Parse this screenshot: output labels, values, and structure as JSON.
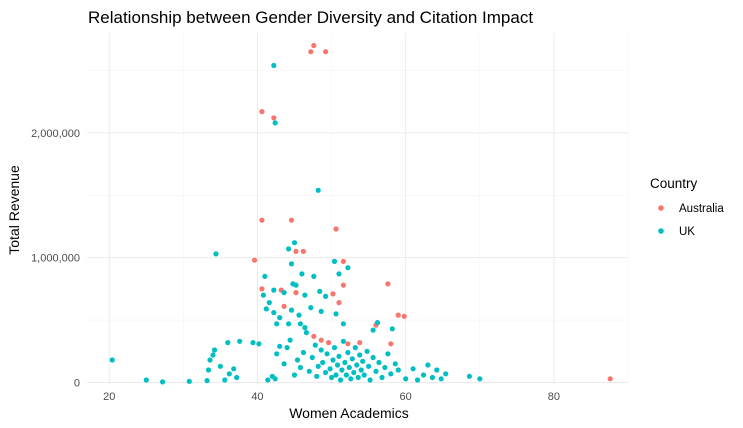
{
  "chart_data": {
    "type": "scatter",
    "title": "Relationship between Gender Diversity and Citation Impact",
    "xlabel": "Women Academics",
    "ylabel": "Total Revenue",
    "xlim": [
      17,
      90
    ],
    "ylim": [
      -20000,
      2800000
    ],
    "x_ticks": [
      20,
      40,
      60,
      80
    ],
    "x_tick_labels": [
      "20",
      "40",
      "60",
      "80"
    ],
    "y_ticks": [
      0,
      1000000,
      2000000
    ],
    "y_tick_labels": [
      "0",
      "1,000,000",
      "2,000,000"
    ],
    "grid": true,
    "legend": {
      "title": "Country",
      "placement": "right",
      "entries": [
        {
          "label": "Australia",
          "color": "#F8766D"
        },
        {
          "label": "UK",
          "color": "#00BFC4"
        }
      ]
    },
    "series": [
      {
        "name": "Australia",
        "color": "#F8766D",
        "points": [
          [
            47.6,
            2700000
          ],
          [
            47.2,
            2650000
          ],
          [
            49.2,
            2650000
          ],
          [
            40.6,
            2170000
          ],
          [
            42.2,
            2120000
          ],
          [
            40.6,
            1300000
          ],
          [
            44.6,
            1300000
          ],
          [
            50.6,
            1230000
          ],
          [
            39.6,
            980000
          ],
          [
            45.2,
            1050000
          ],
          [
            46.2,
            1050000
          ],
          [
            51.6,
            970000
          ],
          [
            40.6,
            750000
          ],
          [
            43.2,
            740000
          ],
          [
            45.2,
            720000
          ],
          [
            50.2,
            710000
          ],
          [
            51.6,
            780000
          ],
          [
            57.6,
            790000
          ],
          [
            43.6,
            610000
          ],
          [
            51.0,
            640000
          ],
          [
            59.0,
            540000
          ],
          [
            59.8,
            530000
          ],
          [
            47.6,
            370000
          ],
          [
            48.6,
            340000
          ],
          [
            49.6,
            320000
          ],
          [
            52.2,
            310000
          ],
          [
            53.8,
            320000
          ],
          [
            56.0,
            460000
          ],
          [
            58.0,
            310000
          ],
          [
            87.6,
            30000
          ]
        ]
      },
      {
        "name": "UK",
        "color": "#00BFC4",
        "points": [
          [
            42.2,
            2540000
          ],
          [
            42.4,
            2080000
          ],
          [
            48.2,
            1540000
          ],
          [
            34.4,
            1030000
          ],
          [
            44.2,
            1070000
          ],
          [
            45.0,
            1120000
          ],
          [
            50.4,
            970000
          ],
          [
            52.2,
            920000
          ],
          [
            41.0,
            850000
          ],
          [
            44.6,
            950000
          ],
          [
            45.2,
            780000
          ],
          [
            46.0,
            870000
          ],
          [
            47.6,
            850000
          ],
          [
            51.0,
            870000
          ],
          [
            40.8,
            700000
          ],
          [
            41.6,
            640000
          ],
          [
            42.2,
            740000
          ],
          [
            43.6,
            720000
          ],
          [
            44.8,
            790000
          ],
          [
            46.4,
            700000
          ],
          [
            48.4,
            730000
          ],
          [
            49.2,
            690000
          ],
          [
            41.2,
            590000
          ],
          [
            42.2,
            560000
          ],
          [
            43.0,
            520000
          ],
          [
            44.6,
            580000
          ],
          [
            45.6,
            540000
          ],
          [
            47.2,
            600000
          ],
          [
            48.6,
            570000
          ],
          [
            50.6,
            550000
          ],
          [
            42.6,
            470000
          ],
          [
            44.2,
            470000
          ],
          [
            45.8,
            470000
          ],
          [
            46.4,
            440000
          ],
          [
            51.6,
            470000
          ],
          [
            56.2,
            480000
          ],
          [
            20.4,
            180000
          ],
          [
            25.0,
            20000
          ],
          [
            27.2,
            5000
          ],
          [
            30.8,
            10000
          ],
          [
            33.2,
            15000
          ],
          [
            33.4,
            100000
          ],
          [
            33.6,
            180000
          ],
          [
            34.0,
            220000
          ],
          [
            34.2,
            260000
          ],
          [
            35.0,
            130000
          ],
          [
            35.6,
            20000
          ],
          [
            36.2,
            70000
          ],
          [
            36.8,
            110000
          ],
          [
            37.2,
            40000
          ],
          [
            36.0,
            320000
          ],
          [
            37.6,
            330000
          ],
          [
            39.4,
            320000
          ],
          [
            40.2,
            310000
          ],
          [
            41.4,
            20000
          ],
          [
            42.0,
            50000
          ],
          [
            42.4,
            30000
          ],
          [
            42.6,
            230000
          ],
          [
            43.0,
            290000
          ],
          [
            43.6,
            150000
          ],
          [
            44.0,
            280000
          ],
          [
            44.4,
            340000
          ],
          [
            45.0,
            60000
          ],
          [
            45.4,
            180000
          ],
          [
            45.8,
            120000
          ],
          [
            46.2,
            240000
          ],
          [
            46.6,
            400000
          ],
          [
            47.0,
            90000
          ],
          [
            47.4,
            200000
          ],
          [
            47.8,
            300000
          ],
          [
            48.0,
            50000
          ],
          [
            48.2,
            130000
          ],
          [
            48.6,
            260000
          ],
          [
            48.8,
            160000
          ],
          [
            49.2,
            80000
          ],
          [
            49.4,
            230000
          ],
          [
            49.8,
            110000
          ],
          [
            50.0,
            40000
          ],
          [
            50.2,
            180000
          ],
          [
            50.4,
            280000
          ],
          [
            50.6,
            60000
          ],
          [
            50.8,
            140000
          ],
          [
            51.0,
            210000
          ],
          [
            51.2,
            20000
          ],
          [
            51.4,
            100000
          ],
          [
            51.6,
            330000
          ],
          [
            51.8,
            160000
          ],
          [
            52.0,
            60000
          ],
          [
            52.2,
            240000
          ],
          [
            52.4,
            120000
          ],
          [
            52.6,
            30000
          ],
          [
            52.8,
            190000
          ],
          [
            53.0,
            80000
          ],
          [
            53.2,
            280000
          ],
          [
            53.4,
            140000
          ],
          [
            53.6,
            40000
          ],
          [
            53.8,
            220000
          ],
          [
            54.0,
            100000
          ],
          [
            54.2,
            170000
          ],
          [
            54.4,
            60000
          ],
          [
            54.8,
            250000
          ],
          [
            55.0,
            130000
          ],
          [
            55.2,
            20000
          ],
          [
            55.6,
            200000
          ],
          [
            56.0,
            90000
          ],
          [
            56.4,
            160000
          ],
          [
            56.8,
            40000
          ],
          [
            57.2,
            120000
          ],
          [
            57.6,
            230000
          ],
          [
            58.0,
            70000
          ],
          [
            58.6,
            150000
          ],
          [
            59.0,
            100000
          ],
          [
            60.0,
            30000
          ],
          [
            61.0,
            110000
          ],
          [
            61.6,
            20000
          ],
          [
            62.4,
            60000
          ],
          [
            63.0,
            140000
          ],
          [
            63.6,
            40000
          ],
          [
            64.2,
            100000
          ],
          [
            64.8,
            30000
          ],
          [
            65.4,
            70000
          ],
          [
            68.6,
            50000
          ],
          [
            70.0,
            30000
          ],
          [
            58.2,
            430000
          ],
          [
            55.6,
            420000
          ]
        ]
      }
    ]
  }
}
